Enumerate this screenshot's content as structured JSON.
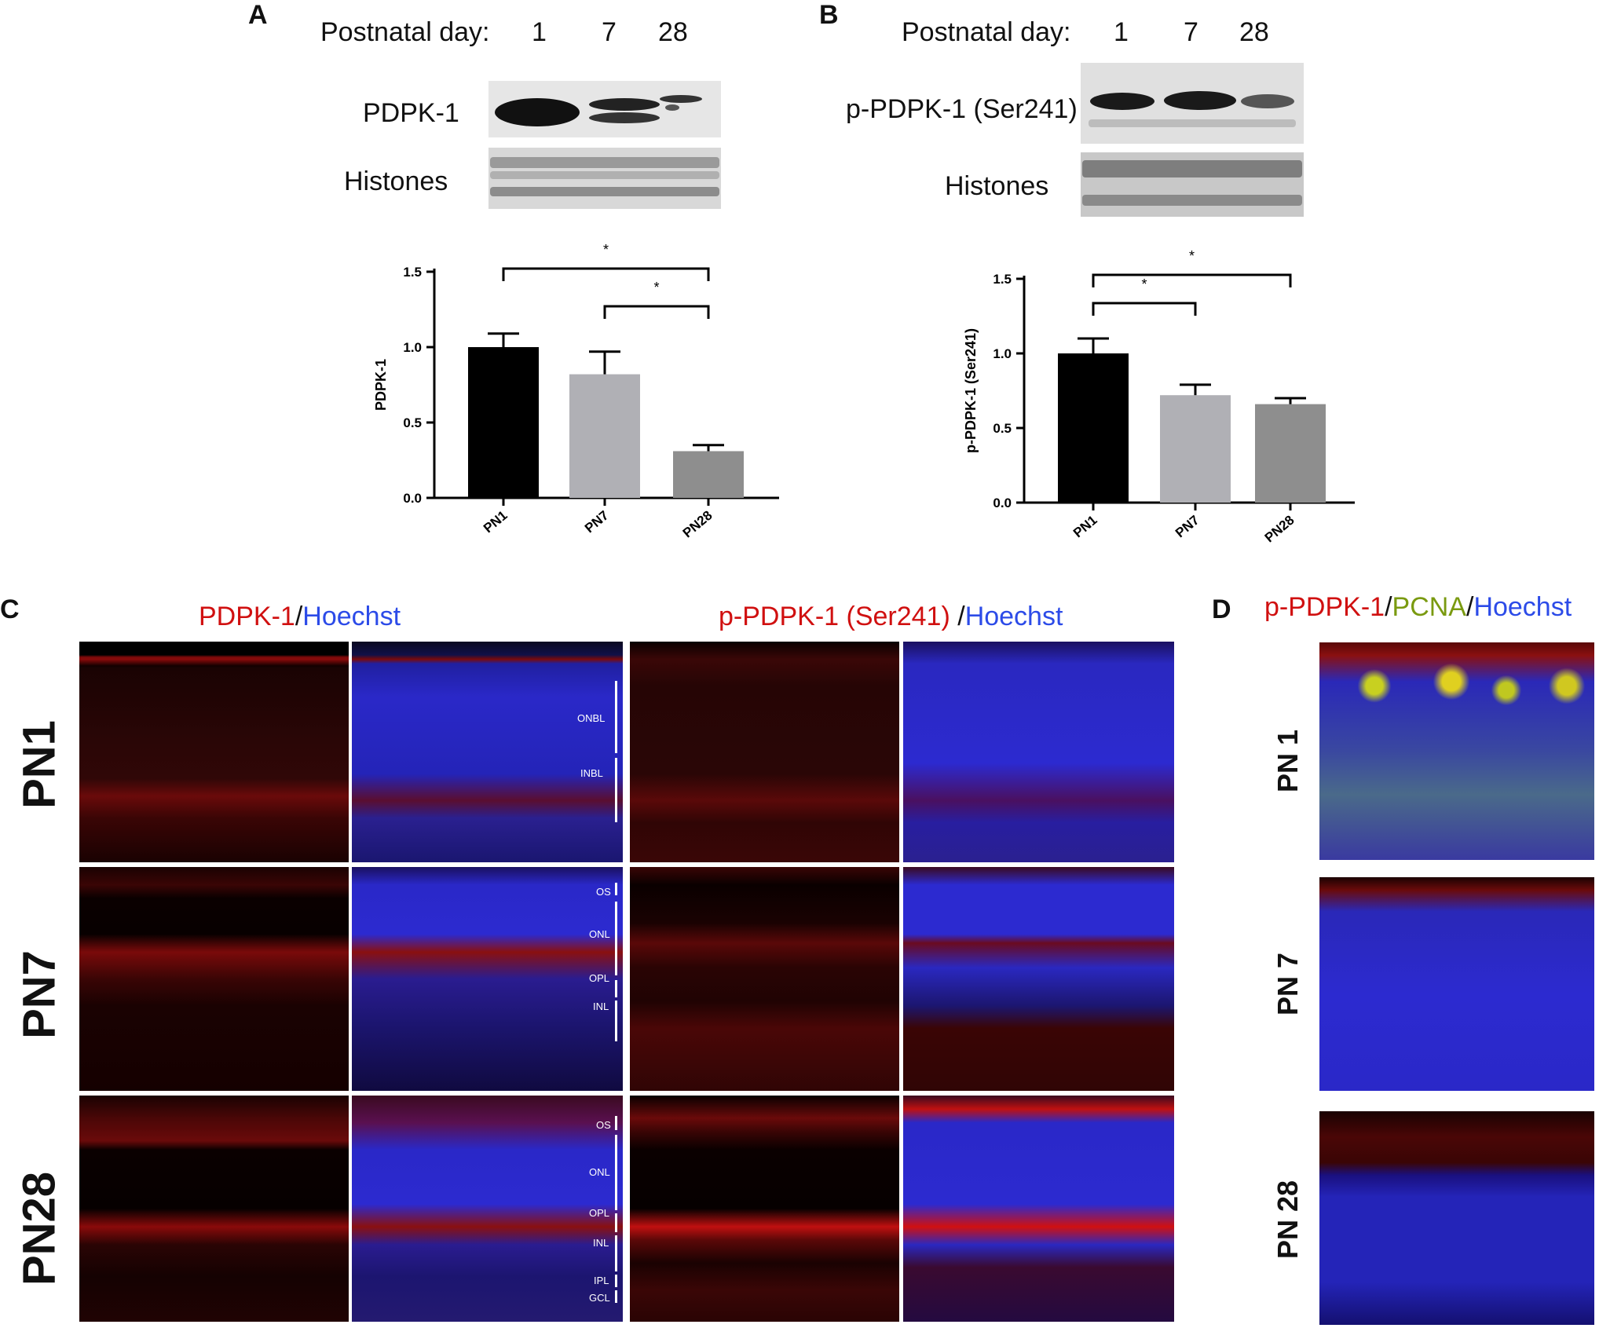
{
  "panels": {
    "A": {
      "letter": "A",
      "header_label": "Postnatal day:",
      "days": [
        "1",
        "7",
        "28"
      ],
      "blot_labels": [
        "PDPK-1",
        "Histones"
      ]
    },
    "B": {
      "letter": "B",
      "header_label": "Postnatal day:",
      "days": [
        "1",
        "7",
        "28"
      ],
      "blot_labels": [
        "p-PDPK-1 (Ser241)",
        "Histones"
      ]
    },
    "C": {
      "letter": "C",
      "title_left": {
        "part1": "PDPK-1",
        "sep": "/",
        "part2": "Hoechst"
      },
      "title_right": {
        "part1": "p-PDPK-1 (Ser241)",
        "sep": " /",
        "part2": "Hoechst"
      },
      "rows": [
        "PN1",
        "PN7",
        "PN28"
      ],
      "layers_pn1": [
        "ONBL",
        "INBL"
      ],
      "layers_pn7": [
        "OS",
        "ONL",
        "OPL",
        "INL"
      ],
      "layers_pn28": [
        "OS",
        "ONL",
        "OPL",
        "INL",
        "IPL",
        "GCL"
      ]
    },
    "D": {
      "letter": "D",
      "title": {
        "part1": "p-PDPK-1",
        "sep1": "/",
        "part2": "PCNA",
        "sep2": "/",
        "part3": "Hoechst"
      },
      "rows": [
        "PN 1",
        "PN 7",
        "PN 28"
      ]
    }
  },
  "colors": {
    "pn1_bar": "#000000",
    "pn7_bar": "#b0b0b5",
    "pn28_bar": "#8e8e8e",
    "stain_red": "#d01010",
    "stain_blue": "#2c4be8",
    "stain_green": "#7a9a10"
  },
  "chart_data": [
    {
      "type": "bar",
      "panel": "A",
      "categories": [
        "PN1",
        "PN7",
        "PN28"
      ],
      "values": [
        1.0,
        0.82,
        0.31
      ],
      "errors": [
        0.09,
        0.15,
        0.04
      ],
      "ylabel": "PDPK-1",
      "ylim": [
        0,
        1.5
      ],
      "yticks": [
        "0.0",
        "0.5",
        "1.0",
        "1.5"
      ],
      "significance": [
        {
          "from": "PN1",
          "to": "PN28",
          "label": "*"
        },
        {
          "from": "PN7",
          "to": "PN28",
          "label": "*"
        }
      ]
    },
    {
      "type": "bar",
      "panel": "B",
      "categories": [
        "PN1",
        "PN7",
        "PN28"
      ],
      "values": [
        1.0,
        0.72,
        0.66
      ],
      "errors": [
        0.1,
        0.07,
        0.04
      ],
      "ylabel": "p-PDPK-1 (Ser241)",
      "ylim": [
        0,
        1.5
      ],
      "yticks": [
        "0.0",
        "0.5",
        "1.0",
        "1.5"
      ],
      "significance": [
        {
          "from": "PN1",
          "to": "PN28",
          "label": "*"
        },
        {
          "from": "PN1",
          "to": "PN7",
          "label": "*"
        }
      ]
    }
  ]
}
